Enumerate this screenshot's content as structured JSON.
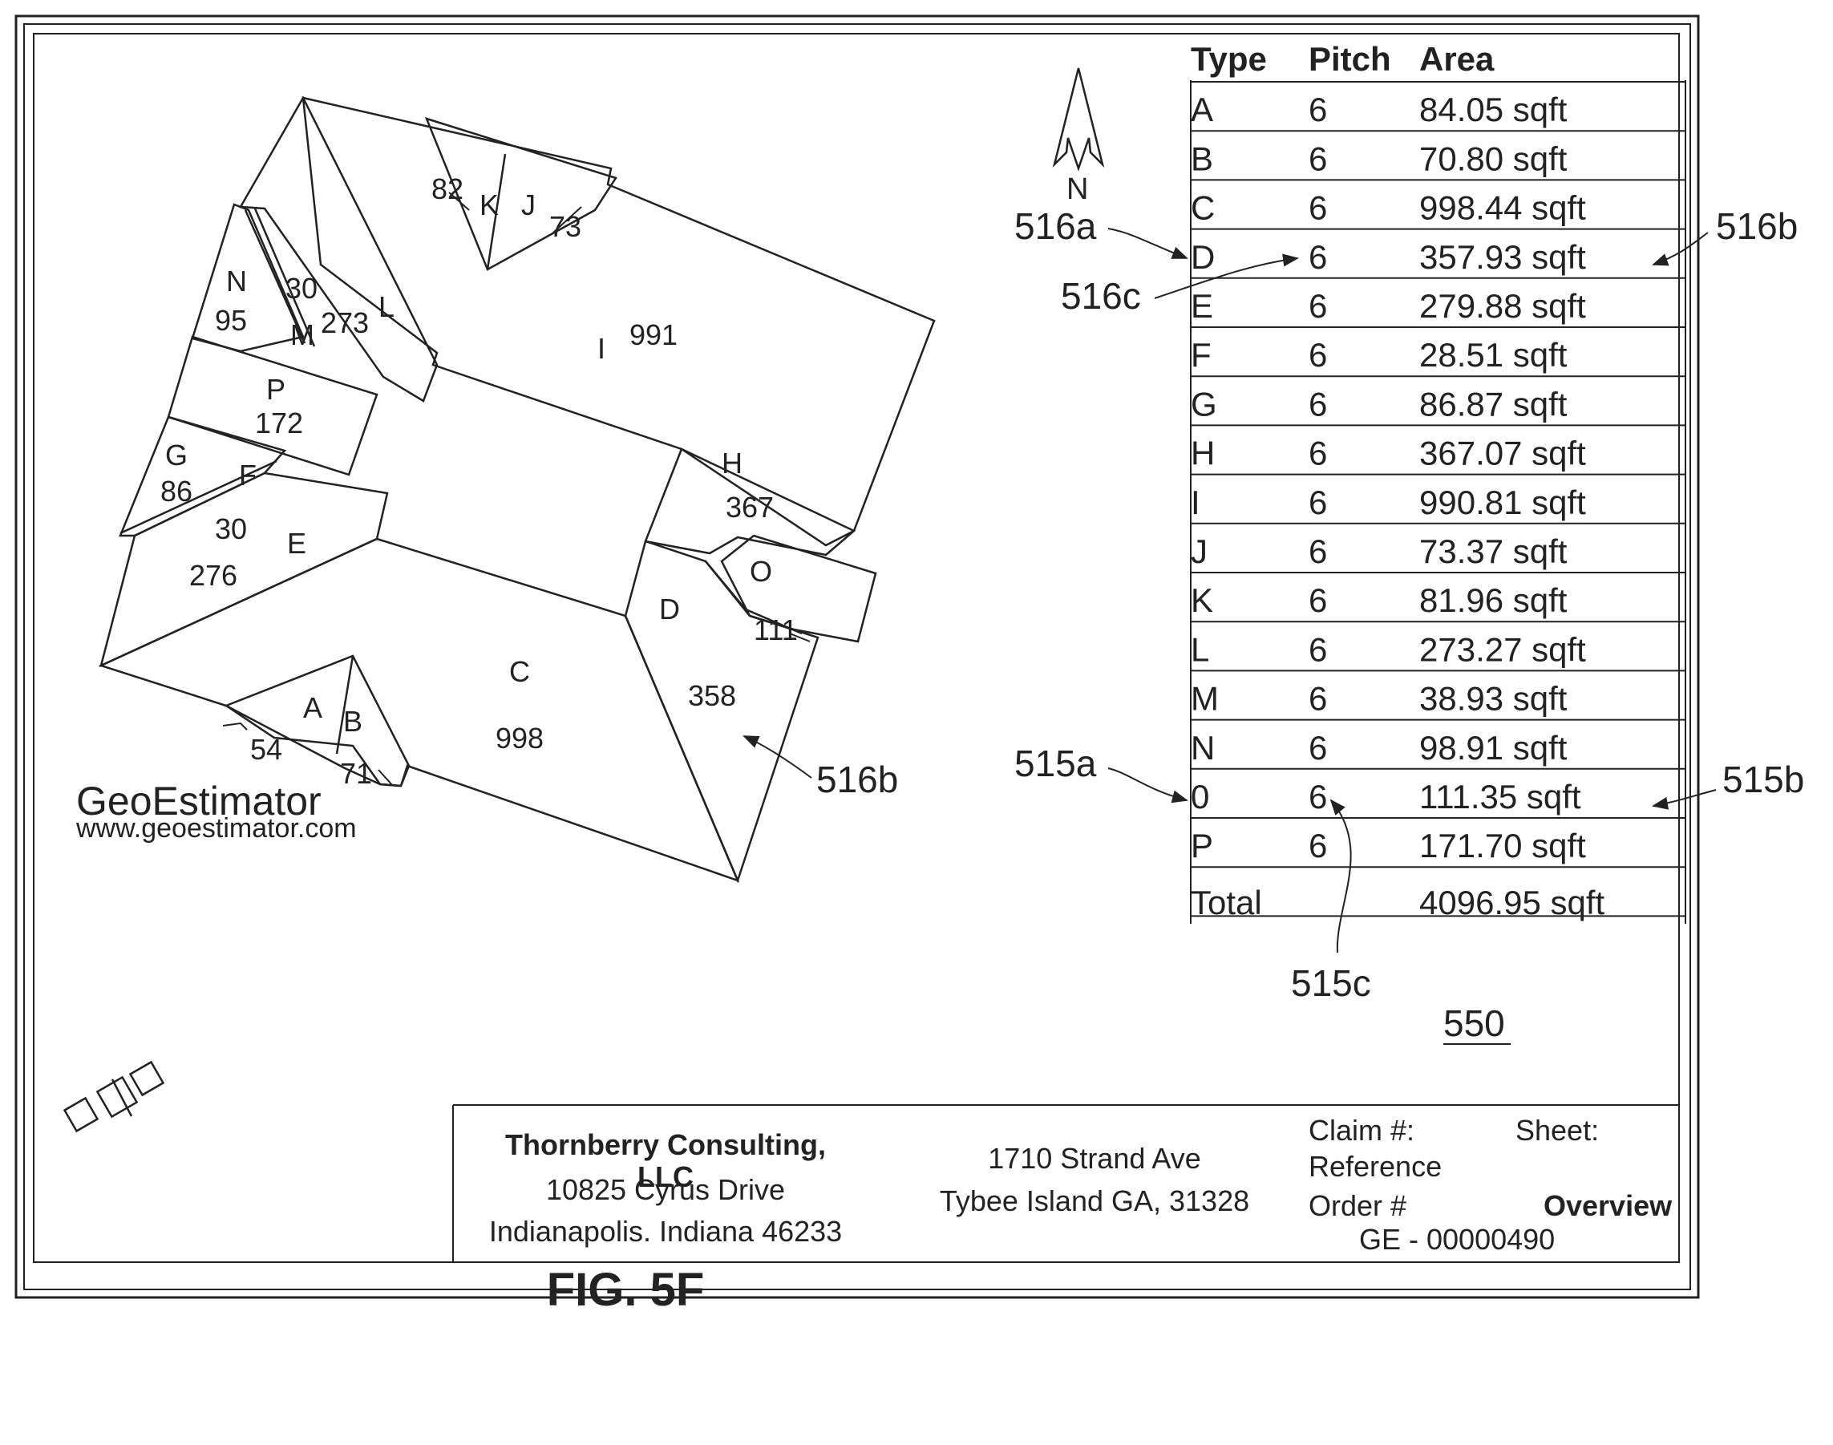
{
  "figure": {
    "caption": "FIG. 5F",
    "ref_report": "550",
    "ref_516a": "516a",
    "ref_516b": "516b",
    "ref_516c": "516c",
    "ref_515a": "515a",
    "ref_515b": "515b",
    "ref_515c": "515c"
  },
  "compass": {
    "label": "N"
  },
  "roof_labels": {
    "A": "A",
    "B": "B",
    "C": "C",
    "D": "D",
    "E": "E",
    "F": "F",
    "G": "G",
    "H": "H",
    "I": "I",
    "J": "J",
    "K": "K",
    "L": "L",
    "M": "M",
    "N": "N",
    "O": "O",
    "P": "P",
    "val_A": "54",
    "val_B": "71",
    "val_C": "998",
    "val_D": "358",
    "val_E": "276",
    "val_F": "30",
    "val_G": "86",
    "val_H": "367",
    "val_I": "991",
    "val_J": "73",
    "val_K": "82",
    "val_L": "273",
    "val_M": "30",
    "val_N": "95",
    "val_O": "111",
    "val_P": "172"
  },
  "table": {
    "headers": [
      "Type",
      "Pitch",
      "Area"
    ],
    "rows": [
      {
        "type": "A",
        "pitch": "6",
        "area": "84.05 sqft"
      },
      {
        "type": "B",
        "pitch": "6",
        "area": "70.80 sqft"
      },
      {
        "type": "C",
        "pitch": "6",
        "area": "998.44 sqft"
      },
      {
        "type": "D",
        "pitch": "6",
        "area": "357.93 sqft"
      },
      {
        "type": "E",
        "pitch": "6",
        "area": "279.88 sqft"
      },
      {
        "type": "F",
        "pitch": "6",
        "area": "28.51 sqft"
      },
      {
        "type": "G",
        "pitch": "6",
        "area": "86.87 sqft"
      },
      {
        "type": "H",
        "pitch": "6",
        "area": "367.07 sqft"
      },
      {
        "type": "I",
        "pitch": "6",
        "area": "990.81 sqft"
      },
      {
        "type": "J",
        "pitch": "6",
        "area": "73.37 sqft"
      },
      {
        "type": "K",
        "pitch": "6",
        "area": "81.96 sqft"
      },
      {
        "type": "L",
        "pitch": "6",
        "area": "273.27 sqft"
      },
      {
        "type": "M",
        "pitch": "6",
        "area": "38.93 sqft"
      },
      {
        "type": "N",
        "pitch": "6",
        "area": "98.91 sqft"
      },
      {
        "type": "0",
        "pitch": "6",
        "area": "111.35 sqft"
      },
      {
        "type": "P",
        "pitch": "6",
        "area": "171.70 sqft"
      }
    ],
    "total_label": "Total",
    "total_area": "4096.95 sqft"
  },
  "title_block": {
    "logo_name": "GeoEstimator",
    "logo_url": "www.geoestimator.com",
    "company_name": "Thornberry Consulting, LLC",
    "company_street": "10825 Cyrus Drive",
    "company_city": "Indianapolis. Indiana 46233",
    "site_street": "1710 Strand Ave",
    "site_city": "Tybee Island GA, 31328",
    "claim_label": "Claim #:",
    "claim_value": "Reference",
    "order_label": "Order #",
    "order_value": "GE - 00000490",
    "sheet_label": "Sheet:",
    "sheet_value": "Overview"
  }
}
